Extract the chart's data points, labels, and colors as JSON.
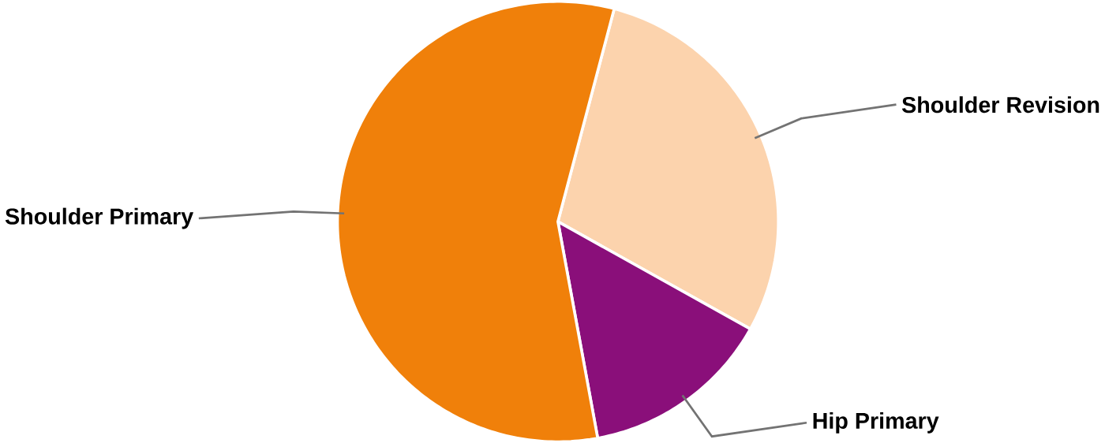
{
  "chart_data": {
    "type": "pie",
    "categories": [
      "Shoulder Revision",
      "Hip Primary",
      "Shoulder Primary"
    ],
    "values": [
      29,
      14,
      57
    ],
    "colors": [
      "#fcd3ad",
      "#8a0f7a",
      "#f0800a"
    ]
  }
}
